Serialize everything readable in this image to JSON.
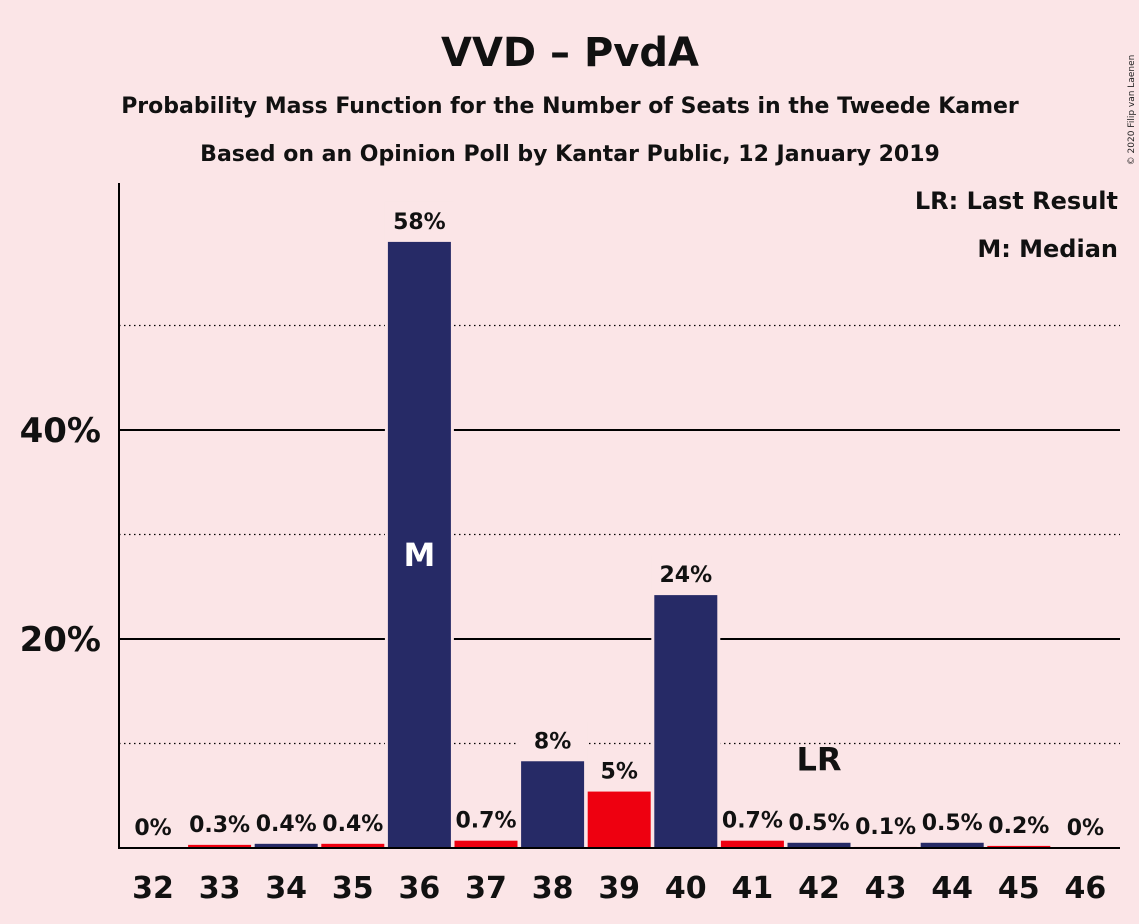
{
  "chart_data": {
    "type": "bar",
    "title": "VVD – PvdA",
    "subtitle": "Probability Mass Function for the Number of Seats in the Tweede Kamer",
    "subtitle2": "Based on an Opinion Poll by Kantar Public, 12 January 2019",
    "copyright": "© 2020 Filip van Laenen",
    "legend": [
      "LR: Last Result",
      "M: Median"
    ],
    "ylim": [
      0,
      63
    ],
    "yticks": [
      {
        "value": 20,
        "label": "20%"
      },
      {
        "value": 40,
        "label": "40%"
      }
    ],
    "minor_gridlines": [
      10,
      30,
      50
    ],
    "categories": [
      "32",
      "33",
      "34",
      "35",
      "36",
      "37",
      "38",
      "39",
      "40",
      "41",
      "42",
      "43",
      "44",
      "45",
      "46"
    ],
    "values": [
      0,
      0.3,
      0.4,
      0.4,
      58,
      0.7,
      8.3,
      5.4,
      24.2,
      0.7,
      0.5,
      0.1,
      0.5,
      0.2,
      0
    ],
    "labels": [
      "0%",
      "0.3%",
      "0.4%",
      "0.4%",
      "58%",
      "0.7%",
      "8%",
      "5%",
      "24%",
      "0.7%",
      "0.5%",
      "0.1%",
      "0.5%",
      "0.2%",
      "0%"
    ],
    "bar_colors": [
      "#262a66",
      "#ee0010",
      "#262a66",
      "#ee0010",
      "#262a66",
      "#ee0010",
      "#262a66",
      "#ee0010",
      "#262a66",
      "#ee0010",
      "#262a66",
      "#ee0010",
      "#262a66",
      "#ee0010",
      "#262a66"
    ],
    "median": {
      "category": "36",
      "marker": "M"
    },
    "last_result": {
      "category": "42",
      "marker": "LR"
    }
  }
}
